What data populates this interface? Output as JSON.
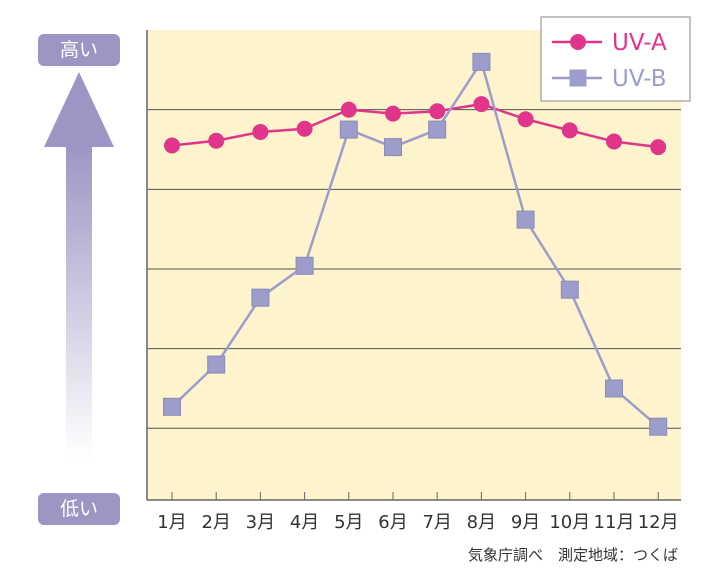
{
  "indicator": {
    "high_label": "高い",
    "low_label": "低い",
    "box_color": "#9d96c4",
    "arrow_color": "#9d96c4"
  },
  "colors": {
    "plot_background": "#fdf3cc",
    "uv_a": "#e0358a",
    "uv_b": "#9d9dcc",
    "grid": "#555555"
  },
  "source_note": "気象庁調べ　測定地域：つくば",
  "chart_data": {
    "type": "line",
    "categories": [
      "1月",
      "2月",
      "3月",
      "4月",
      "5月",
      "6月",
      "7月",
      "8月",
      "9月",
      "10月",
      "11月",
      "12月"
    ],
    "series": [
      {
        "name": "UV-A",
        "marker": "circle",
        "values": [
          3.55,
          3.61,
          3.72,
          3.76,
          4.0,
          3.95,
          3.98,
          4.07,
          3.88,
          3.74,
          3.6,
          3.53
        ]
      },
      {
        "name": "UV-B",
        "marker": "square",
        "values": [
          0.27,
          0.8,
          1.64,
          2.04,
          3.75,
          3.53,
          3.75,
          4.6,
          2.62,
          1.74,
          0.5,
          0.02
        ]
      }
    ],
    "ylim": [
      -0.9,
      5.0
    ],
    "y_gridlines": [
      0,
      1,
      2,
      3,
      4
    ],
    "y_tick_labels_shown": false,
    "legend_position": "top-right",
    "grid": true,
    "xlabel": "",
    "ylabel": ""
  }
}
